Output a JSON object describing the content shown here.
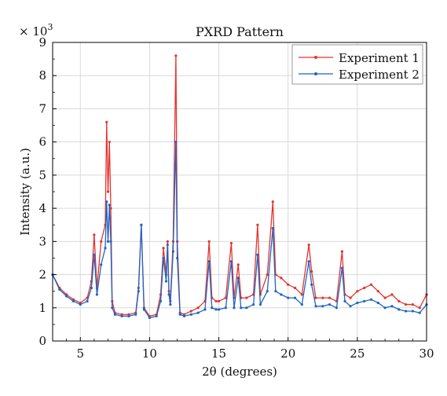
{
  "chart_data": {
    "type": "line",
    "title": "PXRD Pattern",
    "xlabel": "2θ (degrees)",
    "ylabel": "Intensity (a.u.)",
    "y_scale_note": "× 10",
    "y_scale_exp": "3",
    "xlim": [
      3,
      30
    ],
    "ylim": [
      0,
      9
    ],
    "xticks": [
      5,
      10,
      15,
      20,
      25,
      30
    ],
    "yticks": [
      0,
      1,
      2,
      3,
      4,
      5,
      6,
      7,
      8,
      9
    ],
    "grid": true,
    "legend_position": "top-right",
    "series": [
      {
        "name": "Experiment 1",
        "color": "#e3342f",
        "x": [
          3,
          3.5,
          4,
          4.5,
          5,
          5.5,
          5.8,
          6,
          6.2,
          6.5,
          6.8,
          6.9,
          7,
          7.1,
          7.2,
          7.3,
          7.5,
          8,
          8.5,
          9,
          9.2,
          9.4,
          9.6,
          10,
          10.5,
          10.8,
          11,
          11.2,
          11.3,
          11.4,
          11.5,
          11.7,
          11.9,
          12,
          12.2,
          12.5,
          13,
          13.5,
          14,
          14.3,
          14.5,
          14.8,
          15,
          15.5,
          15.9,
          16.1,
          16.4,
          16.6,
          17,
          17.5,
          17.8,
          18,
          18.5,
          18.9,
          19.1,
          19.5,
          20,
          20.5,
          21,
          21.5,
          21.7,
          22,
          22.5,
          23,
          23.5,
          23.9,
          24.1,
          24.5,
          25,
          25.5,
          26,
          26.5,
          27,
          27.5,
          28,
          28.5,
          29,
          29.5,
          30
        ],
        "y": [
          2.0,
          1.6,
          1.4,
          1.25,
          1.15,
          1.3,
          1.8,
          3.2,
          1.6,
          3.0,
          3.5,
          6.6,
          4.5,
          6.0,
          4.0,
          1.2,
          0.85,
          0.8,
          0.8,
          0.85,
          1.6,
          3.5,
          1.0,
          0.75,
          0.8,
          1.4,
          2.8,
          2.0,
          3.0,
          1.5,
          1.2,
          3.0,
          8.6,
          3.0,
          0.85,
          0.8,
          0.9,
          1.0,
          1.2,
          3.0,
          1.3,
          1.2,
          1.2,
          1.3,
          2.95,
          1.3,
          2.3,
          1.3,
          1.3,
          1.4,
          3.5,
          1.4,
          2.0,
          4.2,
          2.0,
          1.9,
          1.7,
          1.6,
          1.4,
          2.9,
          2.1,
          1.3,
          1.3,
          1.3,
          1.2,
          2.7,
          1.4,
          1.3,
          1.5,
          1.6,
          1.7,
          1.5,
          1.3,
          1.4,
          1.2,
          1.1,
          1.1,
          1.0,
          1.4
        ]
      },
      {
        "name": "Experiment 2",
        "color": "#1f66c4",
        "x": [
          3,
          3.5,
          4,
          4.5,
          5,
          5.5,
          5.8,
          6,
          6.2,
          6.5,
          6.8,
          6.9,
          7,
          7.1,
          7.2,
          7.3,
          7.5,
          8,
          8.5,
          9,
          9.2,
          9.4,
          9.6,
          10,
          10.5,
          10.8,
          11,
          11.2,
          11.3,
          11.4,
          11.5,
          11.7,
          11.9,
          12,
          12.2,
          12.5,
          13,
          13.5,
          14,
          14.3,
          14.5,
          14.8,
          15,
          15.5,
          15.9,
          16.1,
          16.4,
          16.6,
          17,
          17.5,
          17.8,
          18,
          18.5,
          18.9,
          19.1,
          19.5,
          20,
          20.5,
          21,
          21.5,
          21.7,
          22,
          22.5,
          23,
          23.5,
          23.9,
          24.1,
          24.5,
          25,
          25.5,
          26,
          26.5,
          27,
          27.5,
          28,
          28.5,
          29,
          29.5,
          30
        ],
        "y": [
          2.0,
          1.55,
          1.35,
          1.2,
          1.1,
          1.2,
          1.6,
          2.6,
          1.4,
          2.3,
          2.8,
          4.2,
          3.0,
          4.1,
          3.0,
          1.0,
          0.8,
          0.75,
          0.75,
          0.8,
          1.5,
          3.5,
          0.95,
          0.7,
          0.75,
          1.2,
          2.5,
          1.8,
          2.9,
          1.4,
          1.1,
          2.7,
          6.0,
          2.5,
          0.8,
          0.75,
          0.8,
          0.85,
          0.95,
          2.4,
          1.0,
          0.95,
          0.95,
          1.0,
          2.4,
          1.0,
          1.9,
          1.0,
          1.0,
          1.1,
          2.6,
          1.1,
          1.5,
          3.4,
          1.5,
          1.4,
          1.3,
          1.3,
          1.1,
          2.4,
          1.7,
          1.05,
          1.05,
          1.1,
          1.0,
          2.2,
          1.2,
          1.05,
          1.15,
          1.2,
          1.25,
          1.15,
          1.0,
          1.05,
          0.95,
          0.9,
          0.9,
          0.85,
          1.1
        ]
      }
    ]
  }
}
